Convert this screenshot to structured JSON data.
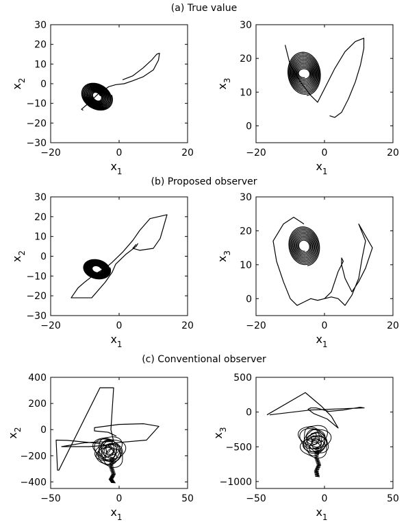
{
  "sections": [
    {
      "title": "(a) True value"
    },
    {
      "title": "(b) Proposed observer"
    },
    {
      "title": "(c) Conventional observer"
    }
  ],
  "chart_data": [
    {
      "panel": "a-left",
      "type": "line",
      "xlabel": "x",
      "xlabel_sub": "1",
      "ylabel": "x",
      "ylabel_sub": "2",
      "xlim": [
        -20,
        20
      ],
      "ylim": [
        -30,
        30
      ],
      "xticks": [
        -20,
        0,
        20
      ],
      "yticks": [
        -30,
        -20,
        -10,
        0,
        10,
        20,
        30
      ],
      "xtick_labels": [
        "−20",
        "0",
        "20"
      ],
      "ytick_labels": [
        "−30",
        "−20",
        "−10",
        "0",
        "10",
        "20",
        "30"
      ],
      "series": [
        {
          "kind": "spiral",
          "color": "#000000",
          "stroke_width": 1.2,
          "polyline": [
            [
              1,
              2
            ],
            [
              4,
              4
            ],
            [
              7,
              8
            ],
            [
              9.5,
              12
            ],
            [
              11,
              15
            ],
            [
              11.8,
              15.5
            ],
            [
              11.5,
              12
            ],
            [
              10,
              7
            ],
            [
              7,
              3.5
            ],
            [
              4,
              1.5
            ],
            [
              1.5,
              0
            ],
            [
              -1,
              -0.5
            ],
            [
              -3,
              -1.5
            ],
            [
              -6,
              -5
            ],
            [
              -9,
              -10
            ],
            [
              -11,
              -13
            ],
            [
              -10.5,
              -13.5
            ]
          ],
          "spiral": {
            "center": [
              -6.5,
              -6.5
            ],
            "turns": 13,
            "start": [
              [
                4.3,
                0.8
              ],
              [
                1.6,
                -7.0
              ]
            ],
            "end": [
              [
                1.0,
                0.25
              ],
              [
                0.5,
                -2.0
              ]
            ]
          }
        }
      ]
    },
    {
      "panel": "a-right",
      "type": "line",
      "xlabel": "x",
      "xlabel_sub": "1",
      "ylabel": "x",
      "ylabel_sub": "3",
      "xlim": [
        -20,
        20
      ],
      "ylim": [
        -5,
        30
      ],
      "xticks": [
        -20,
        0,
        20
      ],
      "yticks": [
        0,
        10,
        20,
        30
      ],
      "xtick_labels": [
        "−20",
        "0",
        "20"
      ],
      "ytick_labels": [
        "0",
        "10",
        "20",
        "30"
      ],
      "series": [
        {
          "kind": "spiral",
          "color": "#000000",
          "stroke_width": 1.2,
          "polyline": [
            [
              1.5,
              3
            ],
            [
              3,
              2.5
            ],
            [
              5,
              4
            ],
            [
              7,
              8
            ],
            [
              9,
              13
            ],
            [
              10.5,
              18
            ],
            [
              11.5,
              23
            ],
            [
              11.5,
              26
            ],
            [
              9,
              25
            ],
            [
              6,
              22
            ],
            [
              3,
              17
            ],
            [
              0.5,
              12
            ],
            [
              -2,
              7
            ],
            [
              -4,
              9
            ],
            [
              -7,
              13
            ],
            [
              -10,
              18
            ],
            [
              -11.5,
              24
            ]
          ],
          "spiral": {
            "center": [
              -6.0,
              15.5
            ],
            "turns": 13,
            "start": [
              [
                0.8,
                -6.5
              ],
              [
                4.8,
                0.6
              ]
            ],
            "end": [
              [
                0.25,
                -1.2
              ],
              [
                1.5,
                0.15
              ]
            ]
          }
        }
      ]
    },
    {
      "panel": "b-left",
      "type": "line",
      "xlabel": "x",
      "xlabel_sub": "1",
      "ylabel": "x",
      "ylabel_sub": "2",
      "xlim": [
        -20,
        20
      ],
      "ylim": [
        -30,
        30
      ],
      "xticks": [
        -20,
        0,
        20
      ],
      "yticks": [
        -30,
        -20,
        -10,
        0,
        10,
        20,
        30
      ],
      "xtick_labels": [
        "−20",
        "0",
        "20"
      ],
      "ytick_labels": [
        "−30",
        "−20",
        "−10",
        "0",
        "10",
        "20",
        "30"
      ],
      "series": [
        {
          "kind": "spiral",
          "color": "#000000",
          "stroke_width": 1.2,
          "polyline": [
            [
              5,
              6
            ],
            [
              4,
              4
            ],
            [
              6,
              3
            ],
            [
              10,
              4
            ],
            [
              12,
              9
            ],
            [
              14,
              21
            ],
            [
              9,
              19
            ],
            [
              6,
              13
            ],
            [
              4,
              8
            ],
            [
              1,
              2
            ],
            [
              -2,
              -3
            ],
            [
              -4,
              -6
            ],
            [
              -7,
              -9
            ],
            [
              -10,
              -13
            ],
            [
              -12,
              -16
            ],
            [
              -14,
              -21
            ],
            [
              -8,
              -21
            ],
            [
              -4,
              -13
            ],
            [
              -2,
              -8
            ],
            [
              -1,
              -4
            ],
            [
              2,
              1
            ],
            [
              5,
              5
            ],
            [
              5.5,
              6.5
            ]
          ],
          "spiral": {
            "center": [
              -6.5,
              -6.5
            ],
            "turns": 12,
            "start": [
              [
                3.8,
                0.8
              ],
              [
                1.3,
                -5.0
              ]
            ],
            "end": [
              [
                1.2,
                0.25
              ],
              [
                0.45,
                -1.6
              ]
            ]
          }
        }
      ]
    },
    {
      "panel": "b-right",
      "type": "line",
      "xlabel": "x",
      "xlabel_sub": "1",
      "ylabel": "x",
      "ylabel_sub": "3",
      "xlim": [
        -20,
        20
      ],
      "ylim": [
        -5,
        30
      ],
      "xticks": [
        -20,
        0,
        20
      ],
      "yticks": [
        0,
        10,
        20,
        30
      ],
      "xtick_labels": [
        "−20",
        "0",
        "20"
      ],
      "ytick_labels": [
        "0",
        "10",
        "20",
        "30"
      ],
      "series": [
        {
          "kind": "spiral",
          "color": "#000000",
          "stroke_width": 1.2,
          "polyline": [
            [
              0,
              0
            ],
            [
              2,
              0.5
            ],
            [
              4,
              0
            ],
            [
              5,
              -1
            ],
            [
              6,
              -2
            ],
            [
              8,
              1
            ],
            [
              10,
              6
            ],
            [
              11,
              12
            ],
            [
              12,
              17
            ],
            [
              10,
              22
            ],
            [
              14,
              15
            ],
            [
              12,
              9
            ],
            [
              10,
              5
            ],
            [
              8,
              2
            ],
            [
              6,
              6
            ],
            [
              5,
              10
            ],
            [
              5,
              12
            ],
            [
              5.5,
              11
            ],
            [
              4,
              8
            ],
            [
              2,
              2
            ],
            [
              0,
              0
            ],
            [
              -2,
              -0.5
            ],
            [
              -4,
              0
            ],
            [
              -6,
              -1
            ],
            [
              -8,
              -2
            ],
            [
              -10,
              0
            ],
            [
              -12,
              5
            ],
            [
              -14,
              11
            ],
            [
              -15,
              17
            ],
            [
              -12,
              22
            ],
            [
              -9,
              24
            ],
            [
              -6,
              22
            ]
          ],
          "spiral": {
            "center": [
              -6.0,
              15.5
            ],
            "turns": 11,
            "start": [
              [
                1.0,
                -5.8
              ],
              [
                4.5,
                0.8
              ]
            ],
            "end": [
              [
                0.3,
                -1.5
              ],
              [
                1.4,
                0.2
              ]
            ]
          }
        }
      ]
    },
    {
      "panel": "c-left",
      "type": "line",
      "xlabel": "x",
      "xlabel_sub": "1",
      "ylabel": "x",
      "ylabel_sub": "2",
      "xlim": [
        -50,
        50
      ],
      "ylim": [
        -450,
        400
      ],
      "xticks": [
        -50,
        0,
        50
      ],
      "yticks": [
        -400,
        -200,
        0,
        200,
        400
      ],
      "xtick_labels": [
        "−50",
        "0",
        "50"
      ],
      "ytick_labels": [
        "−400",
        "−200",
        "0",
        "200",
        "400"
      ],
      "series": [
        {
          "kind": "loops",
          "color": "#000000",
          "stroke_width": 1.2,
          "polyline": [
            [
              -2,
              -50
            ],
            [
              -8,
              -20
            ],
            [
              -18,
              -10
            ],
            [
              -18,
              15
            ],
            [
              0,
              40
            ],
            [
              18,
              45
            ],
            [
              29,
              25
            ],
            [
              20,
              -80
            ],
            [
              -2,
              -100
            ],
            [
              -10,
              -120
            ],
            [
              -22,
              -130
            ],
            [
              -42,
              -130
            ],
            [
              -25,
              -100
            ],
            [
              -4,
              -90
            ],
            [
              -6,
              0
            ],
            [
              -4,
              320
            ],
            [
              -14,
              320
            ],
            [
              -44,
              -310
            ],
            [
              -45,
              -310
            ],
            [
              -46,
              -80
            ],
            [
              -38,
              -82
            ],
            [
              -20,
              -100
            ],
            [
              -12,
              -110
            ],
            [
              -8,
              -130
            ]
          ],
          "loops": {
            "centers": [
              [
                -8,
                -140
              ],
              [
                -7,
                -160
              ],
              [
                -8,
                -170
              ],
              [
                -6,
                -200
              ]
            ],
            "count": 14,
            "rx": [
              2,
              11
            ],
            "ry": [
              30,
              95
            ]
          },
          "tail": [
            [
              -5,
              -210
            ],
            [
              -6,
              -280
            ],
            [
              -4,
              -340
            ],
            [
              -6,
              -380
            ],
            [
              -4,
              -410
            ]
          ]
        }
      ]
    },
    {
      "panel": "c-right",
      "type": "line",
      "xlabel": "x",
      "xlabel_sub": "1",
      "ylabel": "x",
      "ylabel_sub": "3",
      "xlim": [
        -50,
        50
      ],
      "ylim": [
        -1100,
        500
      ],
      "xticks": [
        -50,
        0,
        50
      ],
      "yticks": [
        -1000,
        -500,
        0,
        500
      ],
      "xtick_labels": [
        "−50",
        "0",
        "50"
      ],
      "ytick_labels": [
        "−1000",
        "−500",
        "0",
        "500"
      ],
      "series": [
        {
          "kind": "loops",
          "color": "#000000",
          "stroke_width": 1.2,
          "polyline": [
            [
              -42,
              -40
            ],
            [
              -14,
              280
            ],
            [
              -2,
              80
            ],
            [
              5,
              -60
            ],
            [
              10,
              -230
            ],
            [
              2,
              -100
            ],
            [
              -8,
              -20
            ],
            [
              -12,
              40
            ],
            [
              -10,
              60
            ],
            [
              -6,
              60
            ],
            [
              3,
              10
            ],
            [
              14,
              30
            ],
            [
              26,
              70
            ],
            [
              29,
              60
            ],
            [
              -10,
              30
            ],
            [
              -40,
              -40
            ]
          ],
          "loops": {
            "centers": [
              [
                -8,
                -350
              ],
              [
                -7,
                -400
              ],
              [
                -6,
                -450
              ],
              [
                -7,
                -500
              ]
            ],
            "count": 14,
            "rx": [
              2,
              11
            ],
            "ry": [
              50,
              175
            ]
          },
          "tail": [
            [
              -5,
              -520
            ],
            [
              -6,
              -650
            ],
            [
              -4,
              -760
            ],
            [
              -6,
              -850
            ],
            [
              -5,
              -940
            ]
          ]
        }
      ]
    }
  ]
}
